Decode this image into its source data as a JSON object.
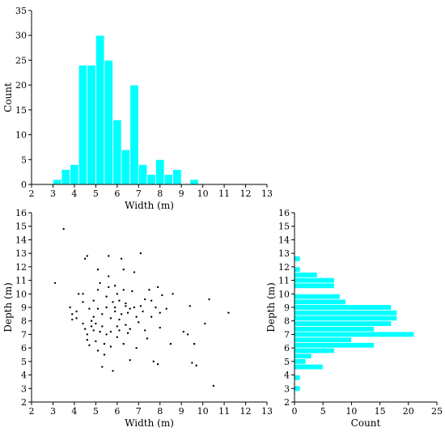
{
  "chart_data": [
    {
      "type": "bar",
      "xlabel": "Width (m)",
      "ylabel": "Count",
      "xlim": [
        2,
        13
      ],
      "ylim": [
        0,
        35
      ],
      "xticks": [
        2,
        3,
        4,
        5,
        6,
        7,
        8,
        9,
        10,
        11,
        12,
        13
      ],
      "yticks": [
        0,
        5,
        10,
        15,
        20,
        25,
        30,
        35
      ],
      "bar_color": "#00ffff",
      "bin_width": 0.4,
      "bins": [
        {
          "x0": 3.0,
          "value": 1
        },
        {
          "x0": 3.4,
          "value": 3
        },
        {
          "x0": 3.8,
          "value": 4
        },
        {
          "x0": 4.2,
          "value": 24
        },
        {
          "x0": 4.6,
          "value": 24
        },
        {
          "x0": 5.0,
          "value": 30
        },
        {
          "x0": 5.4,
          "value": 25
        },
        {
          "x0": 5.8,
          "value": 13
        },
        {
          "x0": 6.2,
          "value": 7
        },
        {
          "x0": 6.6,
          "value": 20
        },
        {
          "x0": 7.0,
          "value": 4
        },
        {
          "x0": 7.4,
          "value": 2
        },
        {
          "x0": 7.8,
          "value": 5
        },
        {
          "x0": 8.2,
          "value": 2
        },
        {
          "x0": 8.6,
          "value": 3
        },
        {
          "x0": 9.4,
          "value": 1
        }
      ]
    },
    {
      "type": "scatter",
      "xlabel": "Width (m)",
      "ylabel": "Depth (m)",
      "xlim": [
        2,
        13
      ],
      "ylim": [
        2,
        16
      ],
      "xticks": [
        2,
        3,
        4,
        5,
        6,
        7,
        8,
        9,
        10,
        11,
        12,
        13
      ],
      "yticks": [
        2,
        3,
        4,
        5,
        6,
        7,
        8,
        9,
        10,
        11,
        12,
        13,
        14,
        15,
        16
      ],
      "point_color": "#000000",
      "points": [
        [
          3.5,
          14.8
        ],
        [
          3.1,
          10.8
        ],
        [
          3.8,
          9.0
        ],
        [
          3.9,
          8.5
        ],
        [
          3.9,
          8.1
        ],
        [
          4.1,
          8.7
        ],
        [
          4.1,
          8.2
        ],
        [
          4.2,
          10.0
        ],
        [
          4.4,
          10.0
        ],
        [
          4.5,
          12.6
        ],
        [
          4.6,
          12.8
        ],
        [
          4.4,
          7.8
        ],
        [
          4.5,
          7.4
        ],
        [
          4.6,
          7.0
        ],
        [
          4.6,
          6.6
        ],
        [
          4.7,
          6.2
        ],
        [
          4.8,
          7.6
        ],
        [
          4.8,
          8.0
        ],
        [
          4.9,
          7.3
        ],
        [
          4.9,
          9.5
        ],
        [
          5.0,
          7.8
        ],
        [
          5.0,
          6.5
        ],
        [
          5.1,
          8.9
        ],
        [
          5.1,
          10.3
        ],
        [
          5.2,
          10.8
        ],
        [
          5.1,
          11.8
        ],
        [
          5.3,
          7.6
        ],
        [
          5.3,
          8.5
        ],
        [
          5.3,
          4.6
        ],
        [
          5.4,
          5.5
        ],
        [
          5.4,
          6.3
        ],
        [
          5.5,
          7.0
        ],
        [
          5.5,
          9.0
        ],
        [
          5.5,
          9.8
        ],
        [
          5.6,
          12.8
        ],
        [
          5.6,
          10.5
        ],
        [
          5.6,
          11.3
        ],
        [
          5.7,
          8.2
        ],
        [
          5.7,
          7.2
        ],
        [
          5.8,
          9.4
        ],
        [
          5.8,
          4.3
        ],
        [
          5.9,
          8.7
        ],
        [
          5.9,
          9.0
        ],
        [
          6.0,
          10.0
        ],
        [
          6.0,
          7.6
        ],
        [
          6.0,
          6.8
        ],
        [
          6.1,
          8.1
        ],
        [
          6.1,
          9.5
        ],
        [
          6.2,
          8.5
        ],
        [
          6.2,
          12.6
        ],
        [
          6.3,
          10.3
        ],
        [
          6.3,
          11.8
        ],
        [
          6.3,
          6.3
        ],
        [
          6.4,
          9.3
        ],
        [
          6.4,
          9.1
        ],
        [
          6.5,
          8.6
        ],
        [
          6.5,
          7.1
        ],
        [
          6.6,
          5.1
        ],
        [
          6.6,
          7.4
        ],
        [
          6.7,
          10.2
        ],
        [
          6.8,
          9.0
        ],
        [
          6.8,
          11.6
        ],
        [
          6.9,
          8.3
        ],
        [
          7.0,
          7.9
        ],
        [
          7.1,
          13.0
        ],
        [
          7.1,
          9.1
        ],
        [
          7.2,
          8.7
        ],
        [
          7.3,
          7.3
        ],
        [
          7.4,
          6.7
        ],
        [
          7.5,
          10.3
        ],
        [
          7.6,
          9.5
        ],
        [
          7.7,
          5.0
        ],
        [
          7.8,
          9.0
        ],
        [
          7.9,
          10.5
        ],
        [
          7.9,
          4.8
        ],
        [
          8.0,
          7.5
        ],
        [
          8.0,
          8.6
        ],
        [
          8.1,
          9.9
        ],
        [
          8.3,
          8.9
        ],
        [
          8.5,
          6.3
        ],
        [
          8.6,
          10.0
        ],
        [
          9.1,
          7.2
        ],
        [
          9.3,
          7.0
        ],
        [
          9.4,
          9.1
        ],
        [
          9.5,
          4.9
        ],
        [
          9.7,
          4.7
        ],
        [
          9.6,
          6.3
        ],
        [
          10.1,
          7.8
        ],
        [
          10.3,
          9.6
        ],
        [
          10.5,
          3.2
        ],
        [
          11.2,
          8.6
        ],
        [
          4.9,
          8.3
        ],
        [
          5.2,
          7.2
        ],
        [
          5.7,
          6.1
        ],
        [
          6.4,
          7.7
        ],
        [
          6.9,
          6.0
        ],
        [
          7.6,
          8.3
        ],
        [
          4.7,
          8.9
        ],
        [
          5.9,
          10.6
        ],
        [
          6.6,
          8.9
        ],
        [
          5.1,
          5.8
        ],
        [
          7.3,
          9.6
        ],
        [
          6.1,
          7.3
        ],
        [
          4.4,
          9.4
        ]
      ]
    },
    {
      "type": "bar",
      "orientation": "horizontal",
      "xlabel": "Count",
      "ylabel": "Depth (m)",
      "xlim": [
        0,
        25
      ],
      "ylim": [
        2,
        16
      ],
      "xticks": [
        0,
        5,
        10,
        15,
        20,
        25
      ],
      "yticks": [
        2,
        3,
        4,
        5,
        6,
        7,
        8,
        9,
        10,
        11,
        12,
        13,
        14,
        15,
        16
      ],
      "bar_color": "#00ffff",
      "bin_height": 0.4,
      "bins": [
        {
          "y0": 2.8,
          "value": 1
        },
        {
          "y0": 3.6,
          "value": 1
        },
        {
          "y0": 4.4,
          "value": 5
        },
        {
          "y0": 4.8,
          "value": 2
        },
        {
          "y0": 5.2,
          "value": 3
        },
        {
          "y0": 5.6,
          "value": 7
        },
        {
          "y0": 6.0,
          "value": 14
        },
        {
          "y0": 6.4,
          "value": 10
        },
        {
          "y0": 6.8,
          "value": 21
        },
        {
          "y0": 7.2,
          "value": 14
        },
        {
          "y0": 7.6,
          "value": 17
        },
        {
          "y0": 8.0,
          "value": 18
        },
        {
          "y0": 8.4,
          "value": 18
        },
        {
          "y0": 8.8,
          "value": 17
        },
        {
          "y0": 9.2,
          "value": 9
        },
        {
          "y0": 9.6,
          "value": 8
        },
        {
          "y0": 10.4,
          "value": 7
        },
        {
          "y0": 10.8,
          "value": 7
        },
        {
          "y0": 11.2,
          "value": 4
        },
        {
          "y0": 11.6,
          "value": 1
        },
        {
          "y0": 12.4,
          "value": 1
        }
      ]
    }
  ]
}
